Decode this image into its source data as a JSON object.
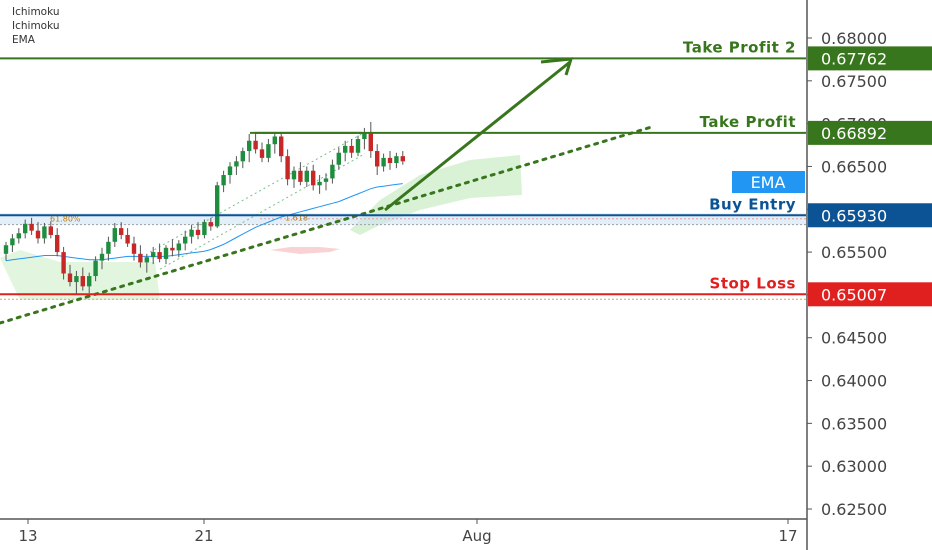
{
  "indicator_legend": [
    "Ichimoku",
    "Ichimoku",
    "EMA"
  ],
  "colors": {
    "up_candle": "#1e8e3e",
    "down_candle": "#c62828",
    "take_profit": "#38761d",
    "buy_entry": "#0b5394",
    "stop_loss": "#e01f1f",
    "ema": "#2196f3",
    "cloud": "#c9ecc4"
  },
  "chart_data": {
    "type": "candlestick",
    "instrument_timeframe": "4H",
    "y_axis": {
      "range": [
        0.6225,
        0.6835
      ],
      "ticks": [
        "0.68000",
        "0.67500",
        "0.67000",
        "0.66500",
        "0.66000",
        "0.65500",
        "0.65000",
        "0.64500",
        "0.64000",
        "0.63500",
        "0.63000",
        "0.62500"
      ]
    },
    "x_axis": {
      "labels": [
        "13",
        "21",
        "Aug",
        "17"
      ]
    },
    "levels": [
      {
        "name": "Take Profit 2",
        "value": "0.67762",
        "color": "#38761d"
      },
      {
        "name": "Take Profit",
        "value": "0.66892",
        "color": "#38761d"
      },
      {
        "name": "Buy Entry",
        "value": "0.65930",
        "color": "#0b5394"
      },
      {
        "name": "Stop Loss",
        "value": "0.65007",
        "color": "#e01f1f"
      }
    ],
    "ema_badge": "EMA",
    "fib_labels": [
      "61.80%",
      "1.618"
    ],
    "candles_ohlc": [
      [
        0.6548,
        0.6562,
        0.654,
        0.6558
      ],
      [
        0.6558,
        0.6571,
        0.655,
        0.6566
      ],
      [
        0.6566,
        0.6578,
        0.656,
        0.6572
      ],
      [
        0.6572,
        0.6588,
        0.6566,
        0.6583
      ],
      [
        0.6583,
        0.659,
        0.657,
        0.6575
      ],
      [
        0.6575,
        0.6585,
        0.656,
        0.6566
      ],
      [
        0.6566,
        0.6584,
        0.656,
        0.658
      ],
      [
        0.658,
        0.6586,
        0.6566,
        0.657
      ],
      [
        0.657,
        0.6578,
        0.6545,
        0.655
      ],
      [
        0.655,
        0.6556,
        0.6518,
        0.6525
      ],
      [
        0.6525,
        0.6535,
        0.651,
        0.6515
      ],
      [
        0.6515,
        0.6528,
        0.65,
        0.6522
      ],
      [
        0.6522,
        0.6532,
        0.6505,
        0.651
      ],
      [
        0.651,
        0.6526,
        0.6502,
        0.6522
      ],
      [
        0.6522,
        0.6545,
        0.6516,
        0.654
      ],
      [
        0.654,
        0.6555,
        0.653,
        0.6548
      ],
      [
        0.6548,
        0.6568,
        0.654,
        0.6562
      ],
      [
        0.6562,
        0.6584,
        0.6556,
        0.6578
      ],
      [
        0.6578,
        0.6585,
        0.6565,
        0.657
      ],
      [
        0.657,
        0.6578,
        0.6556,
        0.656
      ],
      [
        0.656,
        0.6568,
        0.654,
        0.6548
      ],
      [
        0.6548,
        0.6558,
        0.6532,
        0.6538
      ],
      [
        0.6538,
        0.6548,
        0.6526,
        0.6544
      ],
      [
        0.6544,
        0.6556,
        0.6536,
        0.655
      ],
      [
        0.655,
        0.656,
        0.6538,
        0.6542
      ],
      [
        0.6542,
        0.6558,
        0.6536,
        0.6555
      ],
      [
        0.6555,
        0.6565,
        0.6545,
        0.6552
      ],
      [
        0.6552,
        0.6564,
        0.6544,
        0.656
      ],
      [
        0.656,
        0.6575,
        0.6552,
        0.6568
      ],
      [
        0.6568,
        0.6582,
        0.656,
        0.6576
      ],
      [
        0.6576,
        0.6585,
        0.6565,
        0.657
      ],
      [
        0.657,
        0.6588,
        0.6566,
        0.6585
      ],
      [
        0.6585,
        0.659,
        0.6575,
        0.658
      ],
      [
        0.658,
        0.6632,
        0.6578,
        0.6628
      ],
      [
        0.6628,
        0.6645,
        0.662,
        0.664
      ],
      [
        0.664,
        0.6655,
        0.663,
        0.665
      ],
      [
        0.665,
        0.6662,
        0.664,
        0.6656
      ],
      [
        0.6656,
        0.6672,
        0.6648,
        0.6668
      ],
      [
        0.6668,
        0.6688,
        0.6655,
        0.668
      ],
      [
        0.668,
        0.669,
        0.6665,
        0.667
      ],
      [
        0.667,
        0.6678,
        0.6655,
        0.666
      ],
      [
        0.666,
        0.6682,
        0.6655,
        0.6676
      ],
      [
        0.6676,
        0.669,
        0.6665,
        0.6685
      ],
      [
        0.6685,
        0.669,
        0.6655,
        0.6662
      ],
      [
        0.6662,
        0.667,
        0.6628,
        0.6635
      ],
      [
        0.6635,
        0.665,
        0.6625,
        0.6645
      ],
      [
        0.6645,
        0.6655,
        0.6628,
        0.6632
      ],
      [
        0.6632,
        0.665,
        0.6626,
        0.6645
      ],
      [
        0.6645,
        0.6652,
        0.6622,
        0.6628
      ],
      [
        0.6628,
        0.664,
        0.6618,
        0.6632
      ],
      [
        0.6632,
        0.6642,
        0.6622,
        0.6636
      ],
      [
        0.6636,
        0.6658,
        0.663,
        0.6652
      ],
      [
        0.6652,
        0.6672,
        0.6646,
        0.6666
      ],
      [
        0.6666,
        0.668,
        0.6656,
        0.6674
      ],
      [
        0.6674,
        0.6682,
        0.666,
        0.6666
      ],
      [
        0.6666,
        0.6686,
        0.6662,
        0.6682
      ],
      [
        0.6682,
        0.6695,
        0.667,
        0.669
      ],
      [
        0.669,
        0.6702,
        0.666,
        0.6668
      ],
      [
        0.6668,
        0.6676,
        0.664,
        0.665
      ],
      [
        0.665,
        0.6665,
        0.6644,
        0.666
      ],
      [
        0.666,
        0.6668,
        0.6646,
        0.6654
      ],
      [
        0.6654,
        0.6666,
        0.6648,
        0.6662
      ],
      [
        0.6662,
        0.6668,
        0.6652,
        0.6656
      ]
    ],
    "ema_values": [
      0.654,
      0.6541,
      0.6542,
      0.6543,
      0.6544,
      0.6545,
      0.6546,
      0.6546,
      0.6546,
      0.6545,
      0.6544,
      0.6543,
      0.6542,
      0.6541,
      0.6541,
      0.6541,
      0.6542,
      0.6543,
      0.6544,
      0.6545,
      0.6545,
      0.6545,
      0.6545,
      0.6545,
      0.6545,
      0.6545,
      0.6546,
      0.6547,
      0.6548,
      0.6549,
      0.655,
      0.6551,
      0.6553,
      0.6556,
      0.6559,
      0.6563,
      0.6567,
      0.6571,
      0.6575,
      0.6579,
      0.6582,
      0.6585,
      0.6588,
      0.6591,
      0.6593,
      0.6595,
      0.6597,
      0.6599,
      0.6601,
      0.6603,
      0.6605,
      0.6607,
      0.6609,
      0.6612,
      0.6615,
      0.6618,
      0.6621,
      0.6624,
      0.6626,
      0.6627,
      0.6628,
      0.6629,
      0.663
    ]
  }
}
